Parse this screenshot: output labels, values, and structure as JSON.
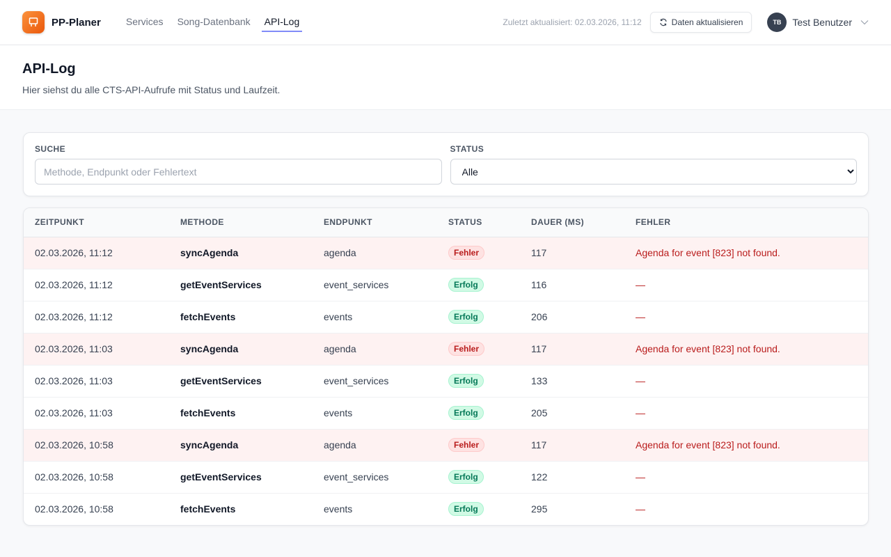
{
  "app": {
    "name": "PP-Planer",
    "logo_icon": "presentation-icon",
    "accent": "#f97316"
  },
  "nav": [
    {
      "label": "Services",
      "active": false
    },
    {
      "label": "Song-Datenbank",
      "active": false
    },
    {
      "label": "API-Log",
      "active": true
    }
  ],
  "topbar": {
    "updated": "Zuletzt aktualisiert: 02.03.2026, 11:12",
    "refresh_label": "Daten aktualisieren",
    "user_initials": "TB",
    "user_name": "Test Benutzer"
  },
  "page": {
    "title": "API-Log",
    "subtitle": "Hier siehst du alle CTS-API-Aufrufe mit Status und Laufzeit."
  },
  "filters": {
    "search_label": "SUCHE",
    "search_placeholder": "Methode, Endpunkt oder Fehlertext",
    "search_value": "",
    "status_label": "STATUS",
    "status_value": "Alle"
  },
  "table": {
    "headers": [
      "ZEITPUNKT",
      "METHODE",
      "ENDPUNKT",
      "STATUS",
      "DAUER (MS)",
      "FEHLER"
    ],
    "rows": [
      {
        "time": "02.03.2026, 11:12",
        "method": "syncAgenda",
        "endpoint": "agenda",
        "status": "Fehler",
        "ok": false,
        "duration": "117",
        "error": "Agenda for event [823] not found."
      },
      {
        "time": "02.03.2026, 11:12",
        "method": "getEventServices",
        "endpoint": "event_services",
        "status": "Erfolg",
        "ok": true,
        "duration": "116",
        "error": "—"
      },
      {
        "time": "02.03.2026, 11:12",
        "method": "fetchEvents",
        "endpoint": "events",
        "status": "Erfolg",
        "ok": true,
        "duration": "206",
        "error": "—"
      },
      {
        "time": "02.03.2026, 11:03",
        "method": "syncAgenda",
        "endpoint": "agenda",
        "status": "Fehler",
        "ok": false,
        "duration": "117",
        "error": "Agenda for event [823] not found."
      },
      {
        "time": "02.03.2026, 11:03",
        "method": "getEventServices",
        "endpoint": "event_services",
        "status": "Erfolg",
        "ok": true,
        "duration": "133",
        "error": "—"
      },
      {
        "time": "02.03.2026, 11:03",
        "method": "fetchEvents",
        "endpoint": "events",
        "status": "Erfolg",
        "ok": true,
        "duration": "205",
        "error": "—"
      },
      {
        "time": "02.03.2026, 10:58",
        "method": "syncAgenda",
        "endpoint": "agenda",
        "status": "Fehler",
        "ok": false,
        "duration": "117",
        "error": "Agenda for event [823] not found."
      },
      {
        "time": "02.03.2026, 10:58",
        "method": "getEventServices",
        "endpoint": "event_services",
        "status": "Erfolg",
        "ok": true,
        "duration": "122",
        "error": "—"
      },
      {
        "time": "02.03.2026, 10:58",
        "method": "fetchEvents",
        "endpoint": "events",
        "status": "Erfolg",
        "ok": true,
        "duration": "295",
        "error": "—"
      }
    ]
  }
}
